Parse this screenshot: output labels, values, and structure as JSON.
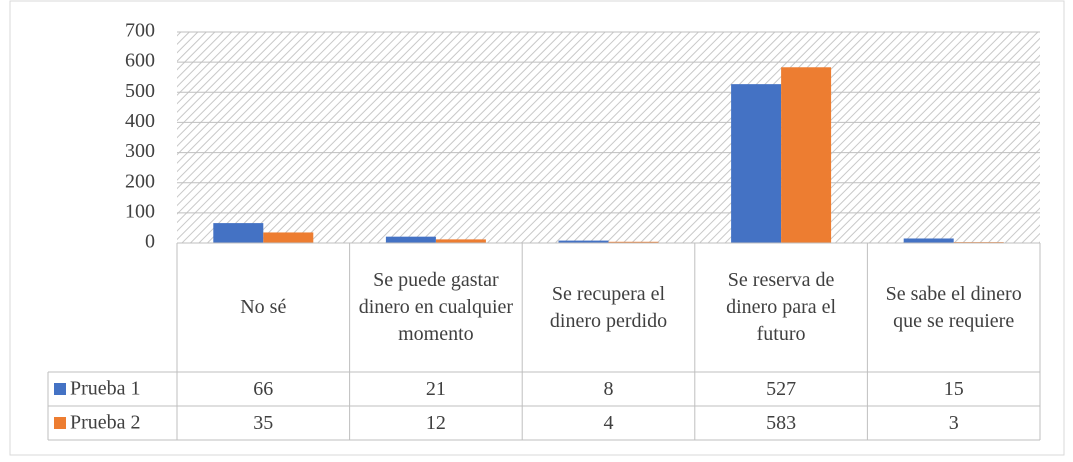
{
  "chart_data": {
    "type": "bar",
    "categories": [
      "No sé",
      "Se puede gastar dinero en cualquier momento",
      "Se recupera el dinero perdido",
      "Se reserva de dinero para el futuro",
      "Se sabe el dinero que se requiere"
    ],
    "series": [
      {
        "name": "Prueba 1",
        "color": "#4472c4",
        "values": [
          66,
          21,
          8,
          527,
          15
        ]
      },
      {
        "name": "Prueba 2",
        "color": "#ed7d31",
        "values": [
          35,
          12,
          4,
          583,
          3
        ]
      }
    ],
    "ylim": [
      0,
      700
    ],
    "yticks": [
      0,
      100,
      200,
      300,
      400,
      500,
      600,
      700
    ],
    "grid": true,
    "data_table": true
  }
}
